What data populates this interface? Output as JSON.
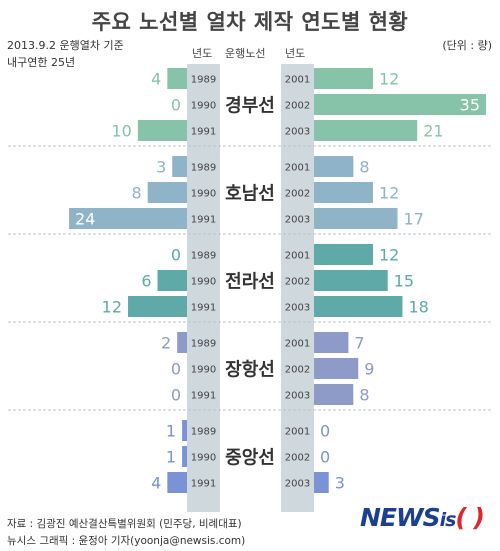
{
  "title": "주요 노선별 열차 제작 연도별 현황",
  "subtitle_line1": "2013.9.2 운행열차 기준",
  "subtitle_line2": "내구연한 25년",
  "unit": "(단위 : 량)",
  "header_left_year": "년도",
  "header_route": "운행노선",
  "header_right_year": "년도",
  "source_line1": "자료 : 김광진 예산결산특별위원회 (민주당, 비례대표)",
  "source_line2": "뉴시스 그래픽 : 윤정아 기자(yoonja@newsis.com)",
  "logo_news": "NEWS",
  "logo_is": "is",
  "logo_paren": "( )",
  "colors": {
    "경부선": "#86c3a8",
    "호남선": "#8fb3c7",
    "전라선": "#5fa9a9",
    "장항선": "#8e9ac8",
    "중앙선": "#7b93d6",
    "year_band": "#cfd8dc"
  },
  "chart_data": {
    "type": "bar",
    "orientation": "horizontal-butterfly",
    "left_years": [
      "1989",
      "1990",
      "1991"
    ],
    "right_years": [
      "2001",
      "2002",
      "2003"
    ],
    "routes": [
      {
        "name": "경부선",
        "left": [
          4,
          0,
          10
        ],
        "right": [
          12,
          35,
          21
        ]
      },
      {
        "name": "호남선",
        "left": [
          3,
          8,
          24
        ],
        "right": [
          8,
          12,
          17
        ]
      },
      {
        "name": "전라선",
        "left": [
          0,
          6,
          12
        ],
        "right": [
          12,
          15,
          18
        ]
      },
      {
        "name": "장항선",
        "left": [
          2,
          0,
          0
        ],
        "right": [
          7,
          9,
          8
        ]
      },
      {
        "name": "중앙선",
        "left": [
          1,
          1,
          4
        ],
        "right": [
          0,
          0,
          3
        ]
      }
    ]
  }
}
